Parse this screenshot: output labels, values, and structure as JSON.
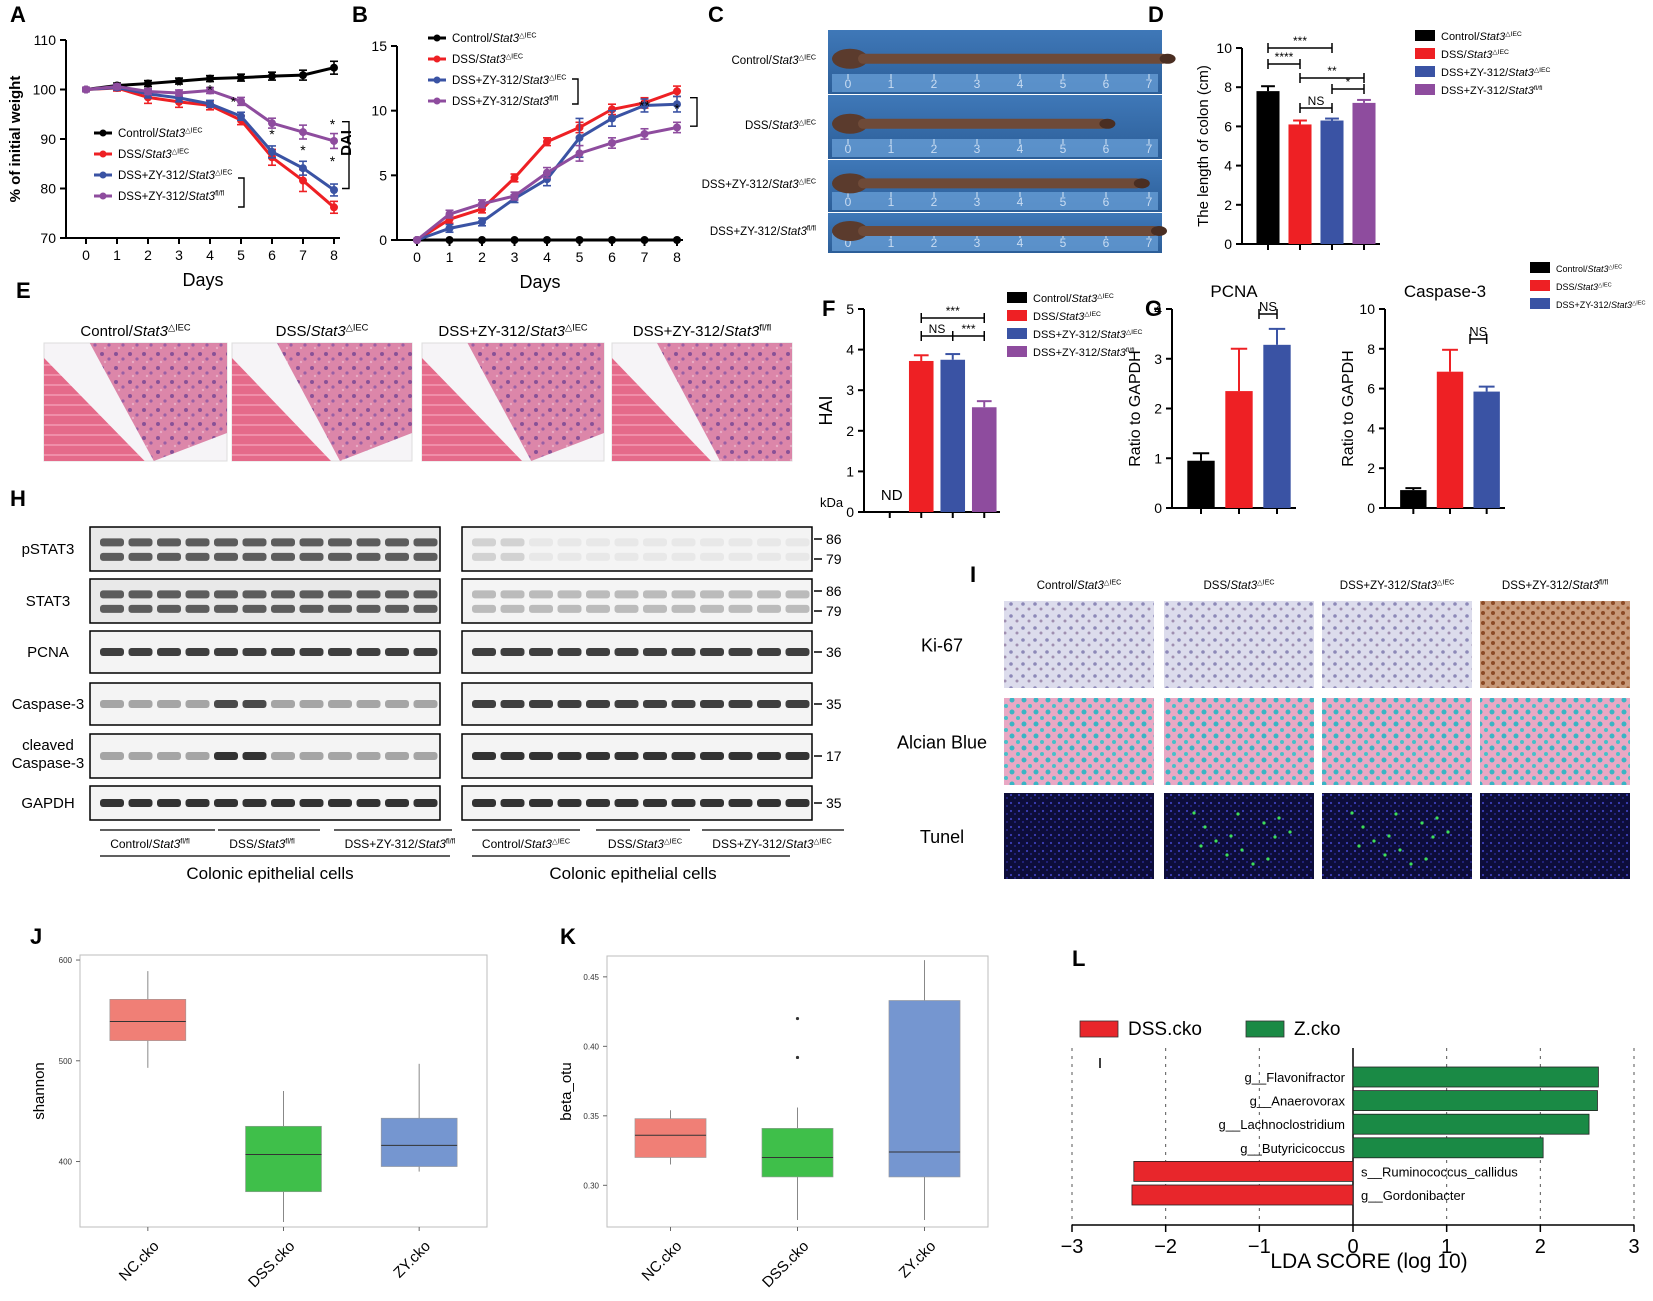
{
  "colors": {
    "control": "#000000",
    "dss": "#ee2024",
    "zy_dko": "#3a53a4",
    "zy_fl": "#8e4c9e",
    "nc_box": "#f07f76",
    "dss_box": "#3fbf4a",
    "zy_box": "#7596d0",
    "lda_red": "#e8262b",
    "lda_green": "#1a8a45"
  },
  "groups": {
    "control_dko": "Control/Stat3△IEC",
    "dss_dko": "DSS/Stat3△IEC",
    "zy_dko": "DSS+ZY-312/Stat3△IEC",
    "zy_fl": "DSS+ZY-312/Stat3fl/fl"
  },
  "panel_letters": [
    "A",
    "B",
    "C",
    "D",
    "E",
    "F",
    "G",
    "H",
    "I",
    "J",
    "K",
    "L"
  ],
  "chart_data": [
    {
      "panel": "A",
      "type": "line",
      "ylabel": "% of initial weight",
      "xlabel": "Days",
      "x": [
        0,
        1,
        2,
        3,
        4,
        5,
        6,
        7,
        8
      ],
      "ylim": [
        70,
        110
      ],
      "yticks": [
        70,
        80,
        90,
        100,
        110
      ],
      "series": [
        {
          "name": "Control/Stat3△IEC",
          "color": "#000000",
          "values": [
            100,
            100.8,
            101.2,
            101.7,
            102.2,
            102.4,
            102.7,
            102.9,
            104.4
          ],
          "err": [
            0.4,
            0.5,
            0.6,
            0.6,
            0.6,
            0.7,
            0.8,
            1.0,
            1.3
          ]
        },
        {
          "name": "DSS/Stat3△IEC",
          "color": "#ee2024",
          "values": [
            100,
            100.3,
            98.4,
            97.5,
            96.8,
            93.8,
            86.3,
            81.6,
            76.2
          ],
          "err": [
            0.4,
            0.6,
            1.2,
            1.1,
            0.9,
            0.9,
            1.6,
            2.2,
            1.2
          ]
        },
        {
          "name": "DSS+ZY-312/Stat3△IEC",
          "color": "#3a53a4",
          "values": [
            100,
            100.4,
            99.1,
            98.3,
            97.1,
            94.6,
            87.4,
            84.1,
            79.7
          ],
          "err": [
            0.4,
            0.5,
            0.8,
            0.8,
            0.7,
            0.8,
            1.2,
            1.4,
            1.2
          ]
        },
        {
          "name": "DSS+ZY-312/Stat3fl/fl",
          "color": "#8e4c9e",
          "values": [
            100,
            100.6,
            99.6,
            99.3,
            99.8,
            97.6,
            93.2,
            91.4,
            89.6
          ],
          "err": [
            0.4,
            0.5,
            0.6,
            0.6,
            0.6,
            0.8,
            1.0,
            1.4,
            1.5
          ]
        }
      ],
      "annotations": [
        "*",
        "*",
        "*",
        "*",
        "*",
        "*",
        "*"
      ]
    },
    {
      "panel": "B",
      "type": "line",
      "ylabel": "DAI",
      "xlabel": "Days",
      "x": [
        0,
        1,
        2,
        3,
        4,
        5,
        6,
        7,
        8
      ],
      "ylim": [
        0,
        15
      ],
      "yticks": [
        0,
        5,
        10,
        15
      ],
      "series": [
        {
          "name": "Control/Stat3△IEC",
          "color": "#000000",
          "values": [
            0,
            0,
            0,
            0,
            0,
            0,
            0,
            0,
            0
          ],
          "err": [
            0,
            0,
            0,
            0,
            0,
            0,
            0,
            0,
            0
          ]
        },
        {
          "name": "DSS/Stat3△IEC",
          "color": "#ee2024",
          "values": [
            0,
            1.6,
            2.4,
            4.8,
            7.6,
            8.7,
            10.1,
            10.6,
            11.5
          ],
          "err": [
            0,
            0.3,
            0.3,
            0.3,
            0.3,
            0.4,
            0.4,
            0.4,
            0.4
          ]
        },
        {
          "name": "DSS+ZY-312/Stat3△IEC",
          "color": "#3a53a4",
          "values": [
            0,
            0.9,
            1.4,
            3.2,
            4.7,
            7.9,
            9.4,
            10.4,
            10.5
          ],
          "err": [
            0,
            0.3,
            0.3,
            0.3,
            0.5,
            1.5,
            0.6,
            0.5,
            0.6
          ]
        },
        {
          "name": "DSS+ZY-312/Stat3fl/fl",
          "color": "#8e4c9e",
          "values": [
            0,
            2.0,
            2.8,
            3.4,
            5.2,
            6.7,
            7.5,
            8.2,
            8.7
          ],
          "err": [
            0,
            0.3,
            0.3,
            0.3,
            0.4,
            0.6,
            0.4,
            0.4,
            0.4
          ]
        }
      ],
      "annotations": [
        "**",
        "*"
      ]
    },
    {
      "panel": "D",
      "type": "bar",
      "ylabel": "The length of colon (cm)",
      "ylim": [
        0,
        10
      ],
      "yticks": [
        0,
        2,
        4,
        6,
        8,
        10
      ],
      "categories": [
        "Control/Stat3△IEC",
        "DSS/Stat3△IEC",
        "DSS+ZY-312/Stat3△IEC",
        "DSS+ZY-312/Stat3fl/fl"
      ],
      "values": [
        7.8,
        6.1,
        6.3,
        7.2
      ],
      "err": [
        0.25,
        0.2,
        0.1,
        0.15
      ],
      "colors": [
        "#000000",
        "#ee2024",
        "#3a53a4",
        "#8e4c9e"
      ],
      "annotations": [
        "***",
        "****",
        "**",
        "NS",
        "*"
      ]
    },
    {
      "panel": "F",
      "type": "bar",
      "ylabel": "HAI",
      "ylim": [
        0,
        5
      ],
      "yticks": [
        0,
        1,
        2,
        3,
        4,
        5
      ],
      "categories": [
        "Control/Stat3△IEC",
        "DSS/Stat3△IEC",
        "DSS+ZY-312/Stat3△IEC",
        "DSS+ZY-312/Stat3fl/fl"
      ],
      "values": [
        0,
        3.72,
        3.75,
        2.58
      ],
      "err": [
        0,
        0.14,
        0.14,
        0.15
      ],
      "colors": [
        "#000000",
        "#ee2024",
        "#3a53a4",
        "#8e4c9e"
      ],
      "annotations": [
        "ND",
        "***",
        "NS",
        "***"
      ]
    },
    {
      "panel": "G",
      "type": "bar",
      "title": "PCNA",
      "ylabel": "Ratio to GAPDH",
      "ylim": [
        0,
        4
      ],
      "yticks": [
        0,
        1,
        2,
        3,
        4
      ],
      "categories": [
        "Control/Stat3△IEC",
        "DSS/Stat3△IEC",
        "DSS+ZY-312/Stat3△IEC"
      ],
      "values": [
        0.95,
        2.35,
        3.28
      ],
      "err": [
        0.15,
        0.85,
        0.32
      ],
      "colors": [
        "#000000",
        "#ee2024",
        "#3a53a4"
      ],
      "annotations": [
        "NS"
      ]
    },
    {
      "panel": "G2",
      "type": "bar",
      "title": "Caspase-3",
      "ylabel": "Ratio to GAPDH",
      "ylim": [
        0,
        10
      ],
      "yticks": [
        0,
        2,
        4,
        6,
        8,
        10
      ],
      "categories": [
        "Control/Stat3△IEC",
        "DSS/Stat3△IEC",
        "DSS+ZY-312/Stat3△IEC"
      ],
      "values": [
        0.9,
        6.85,
        5.85
      ],
      "err": [
        0.1,
        1.1,
        0.25
      ],
      "colors": [
        "#000000",
        "#ee2024",
        "#3a53a4"
      ],
      "annotations": [
        "NS"
      ]
    },
    {
      "panel": "J",
      "type": "box",
      "ylabel": "shannon",
      "ylim": [
        335,
        605
      ],
      "yticks": [
        400,
        500,
        600
      ],
      "categories": [
        "NC.cko",
        "DSS.cko",
        "ZY.cko"
      ],
      "boxes": [
        {
          "min": 493,
          "q1": 520,
          "median": 539,
          "q3": 561,
          "max": 589
        },
        {
          "min": 340,
          "q1": 370,
          "median": 407,
          "q3": 435,
          "max": 470
        },
        {
          "min": 390,
          "q1": 395,
          "median": 416,
          "q3": 443,
          "max": 497
        }
      ],
      "colors": [
        "#f07f76",
        "#3fbf4a",
        "#7596d0"
      ]
    },
    {
      "panel": "K",
      "type": "box",
      "ylabel": "beta_otu",
      "ylim": [
        0.27,
        0.465
      ],
      "yticks": [
        0.3,
        0.35,
        0.4,
        0.45
      ],
      "categories": [
        "NC.cko",
        "DSS.cko",
        "ZY.cko"
      ],
      "boxes": [
        {
          "min": 0.315,
          "q1": 0.32,
          "median": 0.336,
          "q3": 0.348,
          "max": 0.354
        },
        {
          "min": 0.275,
          "q1": 0.306,
          "median": 0.32,
          "q3": 0.341,
          "max": 0.356,
          "outliers": [
            0.392,
            0.42
          ]
        },
        {
          "min": 0.275,
          "q1": 0.306,
          "median": 0.324,
          "q3": 0.433,
          "max": 0.462
        }
      ],
      "colors": [
        "#f07f76",
        "#3fbf4a",
        "#7596d0"
      ]
    },
    {
      "panel": "L",
      "type": "bar",
      "orientation": "horizontal",
      "xlabel": "LDA SCORE (log 10)",
      "xlim": [
        -3,
        3
      ],
      "xticks": [
        -3,
        -2,
        -1,
        0,
        1,
        2,
        3
      ],
      "legend": [
        "DSS.cko",
        "Z.cko"
      ],
      "categories": [
        "g__Flavonifractor",
        "g__Anaerovorax",
        "g__Lachnoclostridium",
        "g__Butyricicoccus",
        "s__Ruminococcus_callidus",
        "g__Gordonibacter"
      ],
      "values": [
        2.62,
        2.61,
        2.52,
        2.03,
        -2.34,
        -2.36
      ],
      "colors": [
        "#1a8a45",
        "#1a8a45",
        "#1a8a45",
        "#1a8a45",
        "#e8262b",
        "#e8262b"
      ]
    }
  ],
  "x_label_days": "Days",
  "C": {
    "labels": [
      "Control/Stat3△IEC",
      "DSS/Stat3△IEC",
      "DSS+ZY-312/Stat3△IEC",
      "DSS+ZY-312/Stat3fl/fl"
    ],
    "ruler": [
      "0",
      "1",
      "2",
      "3",
      "4",
      "5",
      "6",
      "7"
    ],
    "lengths_cm": [
      7.2,
      5.8,
      6.6,
      7.0
    ]
  },
  "E": {
    "labels": [
      "Control/Stat3△IEC",
      "DSS/Stat3△IEC",
      "DSS+ZY-312/Stat3△IEC",
      "DSS+ZY-312/Stat3fl/fl"
    ]
  },
  "H": {
    "rows": [
      "pSTAT3",
      "STAT3",
      "PCNA",
      "Caspase-3",
      "cleaved\nCaspase-3",
      "GAPDH"
    ],
    "kda_header": "kDa",
    "kda": [
      [
        "86",
        "79"
      ],
      [
        "86",
        "79"
      ],
      [
        "36"
      ],
      [
        "35"
      ],
      [
        "17"
      ],
      [
        "35"
      ]
    ],
    "left_groups": [
      "Control/Stat3fl/fl",
      "DSS/Stat3fl/fl",
      "DSS+ZY-312/Stat3fl/fl"
    ],
    "right_groups": [
      "Control/Stat3△IEC",
      "DSS/Stat3△IEC",
      "DSS+ZY-312/Stat3△IEC"
    ],
    "caption": "Colonic epithelial cells"
  },
  "I": {
    "cols": [
      "Control/Stat3△IEC",
      "DSS/Stat3△IEC",
      "DSS+ZY-312/Stat3△IEC",
      "DSS+ZY-312/Stat3fl/fl"
    ],
    "rows": [
      "Ki-67",
      "Alcian Blue",
      "Tunel"
    ]
  }
}
